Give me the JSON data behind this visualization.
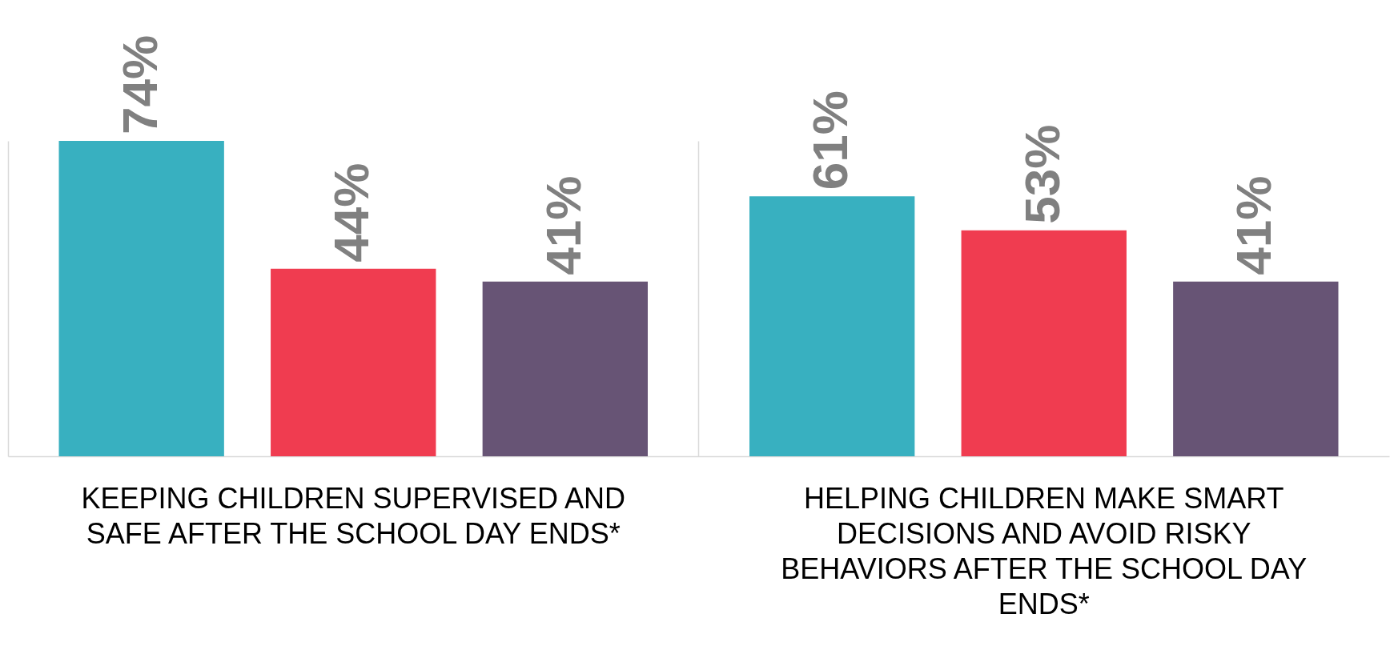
{
  "chart_data": {
    "type": "bar",
    "categories": [
      "KEEPING CHILDREN SUPERVISED AND SAFE AFTER THE SCHOOL DAY ENDS*",
      "HELPING CHILDREN MAKE SMART DECISIONS AND AVOID RISKY BEHAVIORS AFTER THE SCHOOL DAY ENDS*"
    ],
    "series": [
      {
        "color": "#38b0c0",
        "values": [
          74,
          61
        ],
        "value_labels": [
          "74%",
          "61%"
        ]
      },
      {
        "color": "#f03c50",
        "values": [
          44,
          53
        ],
        "value_labels": [
          "44%",
          "53%"
        ]
      },
      {
        "color": "#675475",
        "values": [
          41,
          41
        ],
        "value_labels": [
          "41%",
          "41%"
        ]
      }
    ],
    "grid": "x",
    "legend": false,
    "tick_labels": "x"
  }
}
